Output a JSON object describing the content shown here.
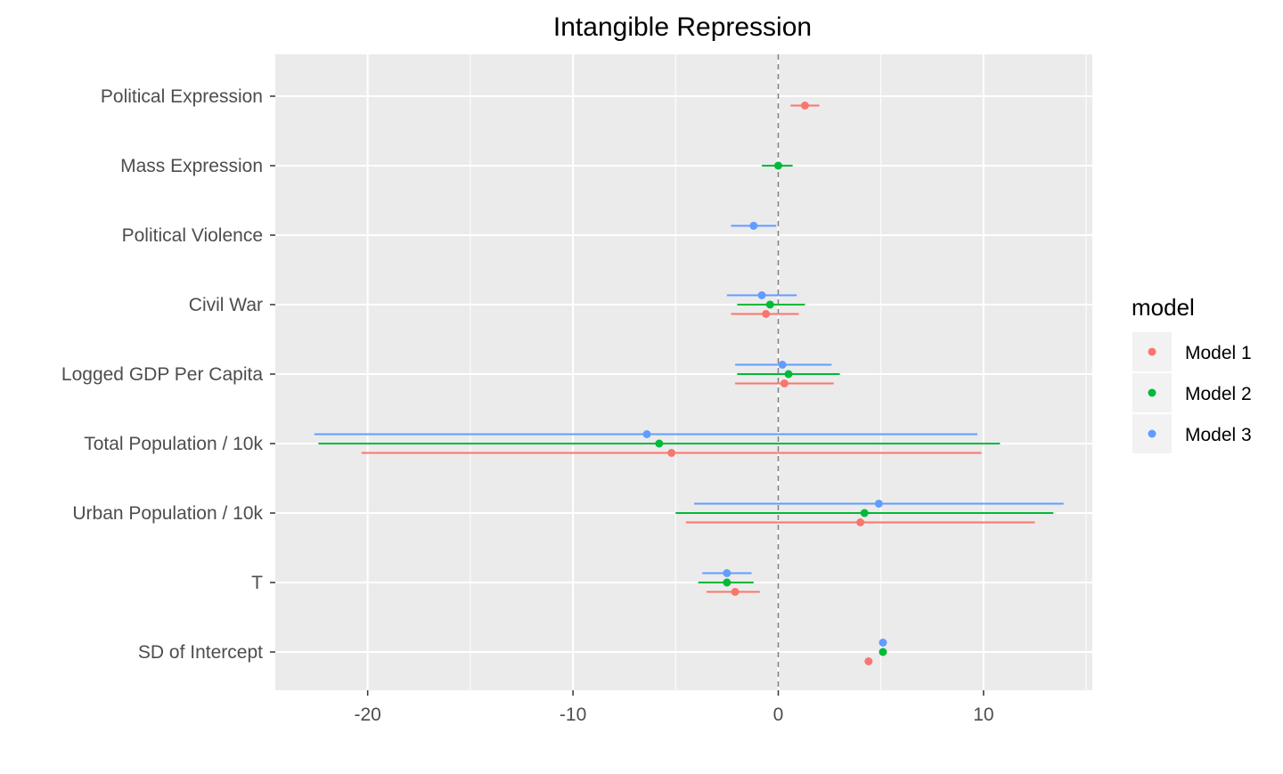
{
  "chart_data": {
    "type": "scatter",
    "subtype": "coefficient-plot",
    "title": "Intangible Repression",
    "xlabel": "",
    "ylabel": "",
    "xlim": [
      -24.5,
      15.3
    ],
    "x_ticks": [
      -20,
      -10,
      0,
      10
    ],
    "x_tick_labels": [
      "-20",
      "-10",
      "0",
      "10"
    ],
    "reference_line": 0,
    "grid": true,
    "legend_title": "model",
    "legend_position": "right",
    "categories": [
      "Political Expression",
      "Mass Expression",
      "Political Violence",
      "Civil War",
      "Logged GDP Per Capita",
      "Total Population / 10k",
      "Urban Population / 10k",
      "T",
      "SD of Intercept"
    ],
    "series": [
      {
        "name": "Model 1",
        "color": "#F8766D",
        "points": [
          {
            "category": "Political Expression",
            "estimate": 1.3,
            "low": 0.6,
            "high": 2.0
          },
          {
            "category": "Civil War",
            "estimate": -0.6,
            "low": -2.3,
            "high": 1.0
          },
          {
            "category": "Logged GDP Per Capita",
            "estimate": 0.3,
            "low": -2.1,
            "high": 2.7
          },
          {
            "category": "Total Population / 10k",
            "estimate": -5.2,
            "low": -20.3,
            "high": 9.9
          },
          {
            "category": "Urban Population / 10k",
            "estimate": 4.0,
            "low": -4.5,
            "high": 12.5
          },
          {
            "category": "T",
            "estimate": -2.1,
            "low": -3.5,
            "high": -0.9
          },
          {
            "category": "SD of Intercept",
            "estimate": 4.4,
            "low": 4.4,
            "high": 4.4
          }
        ]
      },
      {
        "name": "Model 2",
        "color": "#00BA38",
        "points": [
          {
            "category": "Mass Expression",
            "estimate": 0.0,
            "low": -0.8,
            "high": 0.7
          },
          {
            "category": "Civil War",
            "estimate": -0.4,
            "low": -2.0,
            "high": 1.3
          },
          {
            "category": "Logged GDP Per Capita",
            "estimate": 0.5,
            "low": -2.0,
            "high": 3.0
          },
          {
            "category": "Total Population / 10k",
            "estimate": -5.8,
            "low": -22.4,
            "high": 10.8
          },
          {
            "category": "Urban Population / 10k",
            "estimate": 4.2,
            "low": -5.0,
            "high": 13.4
          },
          {
            "category": "T",
            "estimate": -2.5,
            "low": -3.9,
            "high": -1.2
          },
          {
            "category": "SD of Intercept",
            "estimate": 5.1,
            "low": 5.1,
            "high": 5.1
          }
        ]
      },
      {
        "name": "Model 3",
        "color": "#619CFF",
        "points": [
          {
            "category": "Political Violence",
            "estimate": -1.2,
            "low": -2.3,
            "high": -0.1
          },
          {
            "category": "Civil War",
            "estimate": -0.8,
            "low": -2.5,
            "high": 0.9
          },
          {
            "category": "Logged GDP Per Capita",
            "estimate": 0.2,
            "low": -2.1,
            "high": 2.6
          },
          {
            "category": "Total Population / 10k",
            "estimate": -6.4,
            "low": -22.6,
            "high": 9.7
          },
          {
            "category": "Urban Population / 10k",
            "estimate": 4.9,
            "low": -4.1,
            "high": 13.9
          },
          {
            "category": "T",
            "estimate": -2.5,
            "low": -3.7,
            "high": -1.3
          },
          {
            "category": "SD of Intercept",
            "estimate": 5.1,
            "low": 5.1,
            "high": 5.1
          }
        ]
      }
    ]
  }
}
